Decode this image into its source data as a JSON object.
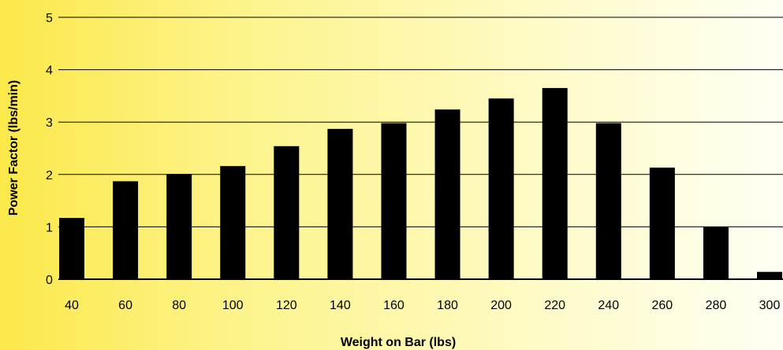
{
  "chart_data": {
    "type": "bar",
    "title": "",
    "xlabel": "Weight on Bar (lbs)",
    "ylabel": "Power Factor (lbs/min)",
    "categories": [
      "40",
      "60",
      "80",
      "100",
      "120",
      "140",
      "160",
      "180",
      "200",
      "220",
      "240",
      "260",
      "280",
      "300"
    ],
    "values": [
      1.17,
      1.87,
      2.01,
      2.16,
      2.54,
      2.87,
      2.98,
      3.24,
      3.45,
      3.65,
      2.98,
      2.13,
      1.0,
      0.14
    ],
    "ylim": [
      0,
      5
    ],
    "yticks": [
      "0",
      "1",
      "2",
      "3",
      "4",
      "5"
    ],
    "grid": true,
    "legend": "none",
    "colors": {
      "bar": "#000000",
      "grid": "#000000",
      "background_start": "#fbe84a",
      "background_end": "#fffff4"
    }
  }
}
